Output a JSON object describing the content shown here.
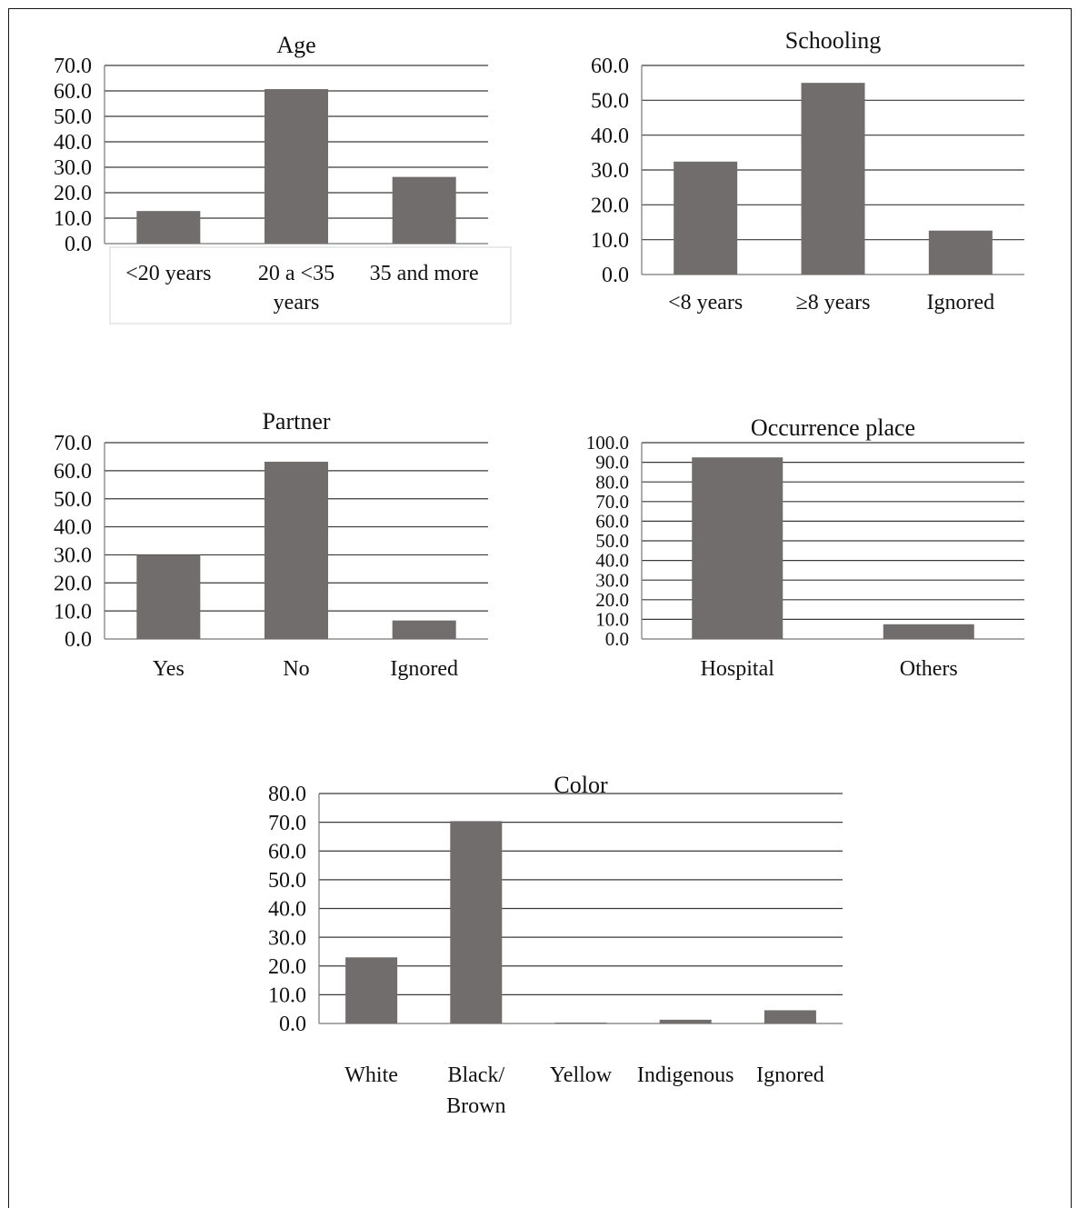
{
  "chart_data": [
    {
      "type": "bar",
      "title": "Age",
      "categories": [
        "<20 years",
        "20 a <35 years",
        "35 and more"
      ],
      "values": [
        12.8,
        60.7,
        26.2
      ],
      "ylim": [
        0,
        70
      ],
      "yticks": [
        "0.0",
        "10.0",
        "20.0",
        "30.0",
        "40.0",
        "50.0",
        "60.0",
        "70.0"
      ],
      "grid": true,
      "bar_color": "#716d6c"
    },
    {
      "type": "bar",
      "title": "Schooling",
      "categories": [
        "<8 years",
        "≥8 years",
        "Ignored"
      ],
      "values": [
        32.4,
        55.0,
        12.6
      ],
      "ylim": [
        0,
        60
      ],
      "yticks": [
        "0.0",
        "10.0",
        "20.0",
        "30.0",
        "40.0",
        "50.0",
        "60.0"
      ],
      "grid": true,
      "bar_color": "#716d6c"
    },
    {
      "type": "bar",
      "title": "Partner",
      "categories": [
        "Yes",
        "No",
        "Ignored"
      ],
      "values": [
        30.0,
        63.2,
        6.6
      ],
      "ylim": [
        0,
        70
      ],
      "yticks": [
        "0.0",
        "10.0",
        "20.0",
        "30.0",
        "40.0",
        "50.0",
        "60.0",
        "70.0"
      ],
      "grid": true,
      "bar_color": "#716d6c"
    },
    {
      "type": "bar",
      "title": "Occurrence place",
      "categories": [
        "Hospital",
        "Others"
      ],
      "values": [
        92.5,
        7.5
      ],
      "ylim": [
        0,
        100
      ],
      "yticks": [
        "0.0",
        "10.0",
        "20.0",
        "30.0",
        "40.0",
        "50.0",
        "60.0",
        "70.0",
        "80.0",
        "90.0",
        "100.0"
      ],
      "grid": true,
      "bar_color": "#716d6c"
    },
    {
      "type": "bar",
      "title": "Color",
      "categories": [
        "White",
        "Black/ Brown",
        "Yellow",
        "Indigenous",
        "Ignored"
      ],
      "values": [
        23.0,
        70.4,
        0.3,
        1.3,
        4.6
      ],
      "ylim": [
        0,
        80
      ],
      "yticks": [
        "0.0",
        "10.0",
        "20.0",
        "30.0",
        "40.0",
        "50.0",
        "60.0",
        "70.0",
        "80.0"
      ],
      "grid": true,
      "bar_color": "#716d6c"
    }
  ]
}
